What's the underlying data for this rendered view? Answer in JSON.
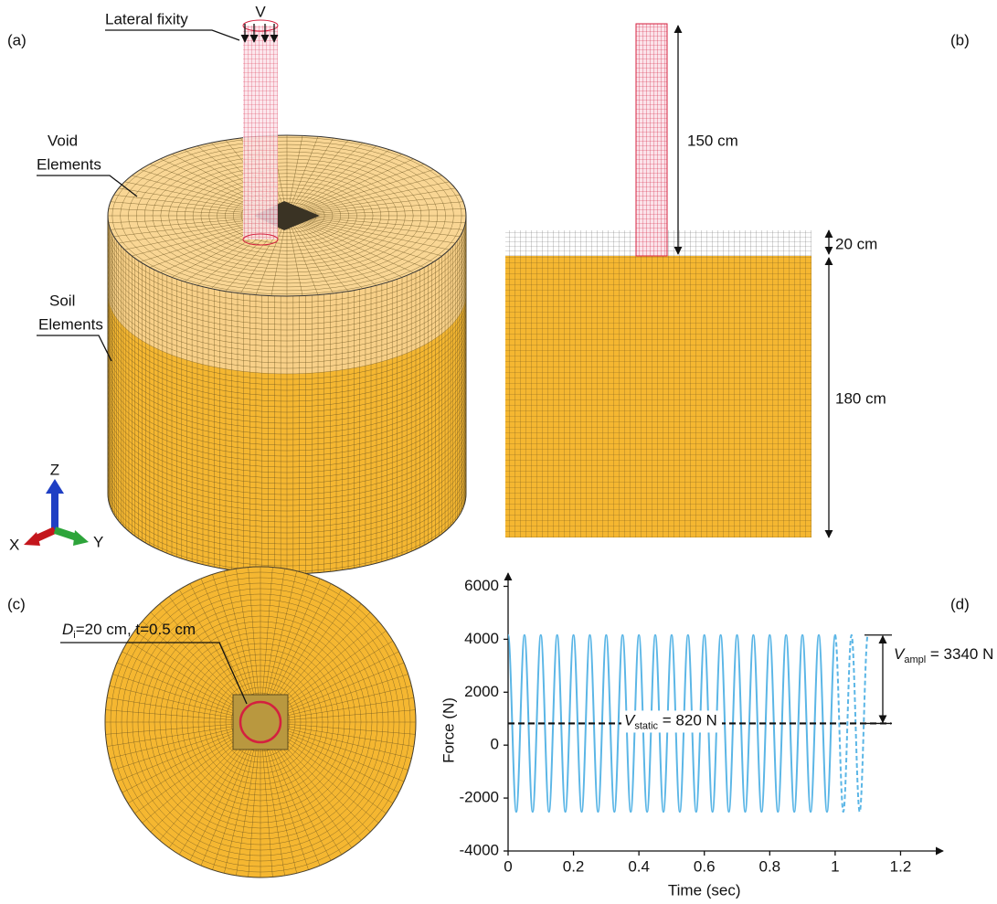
{
  "panel_a": {
    "label": "(a)",
    "lateral_fixity": "Lateral fixity",
    "load": "V",
    "void_elements": [
      "Void",
      "Elements"
    ],
    "soil_elements": [
      "Soil",
      "Elements"
    ],
    "triad": {
      "z": "Z",
      "x": "X",
      "y": "Y"
    }
  },
  "panel_b": {
    "label": "(b)",
    "pile_length": "150 cm",
    "void_depth": "20 cm",
    "soil_depth": "180 cm"
  },
  "panel_c": {
    "label": "(c)",
    "pile": {
      "symbol": "D",
      "subscript": "i",
      "text": "=20 cm, t=0.5 cm"
    }
  },
  "chart_data": {
    "type": "line",
    "label": "(d)",
    "x_label": "Time (sec)",
    "y_label": "Force (N)",
    "xlim": [
      0,
      1.33
    ],
    "ylim": [
      -4000,
      6500
    ],
    "xticks": [
      0,
      0.2,
      0.4,
      0.6,
      0.8,
      1,
      1.2
    ],
    "yticks": [
      -4000,
      -2000,
      0,
      2000,
      4000,
      6000
    ],
    "series": [
      {
        "color": "#5bb6e6",
        "dashed": false,
        "x": [
          0,
          0.025,
          0.05,
          0.075,
          0.1,
          0.125,
          0.15,
          0.175,
          0.2,
          0.225,
          0.25,
          0.275,
          0.3,
          0.325,
          0.35,
          0.375,
          0.4,
          0.425,
          0.45,
          0.475,
          0.5,
          0.525,
          0.55,
          0.575,
          0.6,
          0.625,
          0.65,
          0.675,
          0.7,
          0.725,
          0.75,
          0.775,
          0.8,
          0.825,
          0.85,
          0.875,
          0.9,
          0.925,
          0.95,
          0.975,
          1.0
        ],
        "values": [
          4160,
          -2520,
          4160,
          -2520,
          4160,
          -2520,
          4160,
          -2520,
          4160,
          -2520,
          4160,
          -2520,
          4160,
          -2520,
          4160,
          -2520,
          4160,
          -2520,
          4160,
          -2520,
          4160,
          -2520,
          4160,
          -2520,
          4160,
          -2520,
          4160,
          -2520,
          4160,
          -2520,
          4160,
          -2520,
          4160,
          -2520,
          4160,
          -2520,
          4160,
          -2520,
          4160,
          -2520,
          4160
        ]
      },
      {
        "color": "#5bb6e6",
        "dashed": true,
        "x": [
          1.0,
          1.025,
          1.05,
          1.075,
          1.1
        ],
        "values": [
          4160,
          -2520,
          4160,
          -2520,
          4160
        ]
      }
    ],
    "static_load": {
      "value": 820,
      "symbol": "V",
      "subscript": "static",
      "text": " = 820 N"
    },
    "amplitude": {
      "value": 3340,
      "symbol": "V",
      "subscript": "ampl",
      "text": " = 3340 N"
    }
  }
}
